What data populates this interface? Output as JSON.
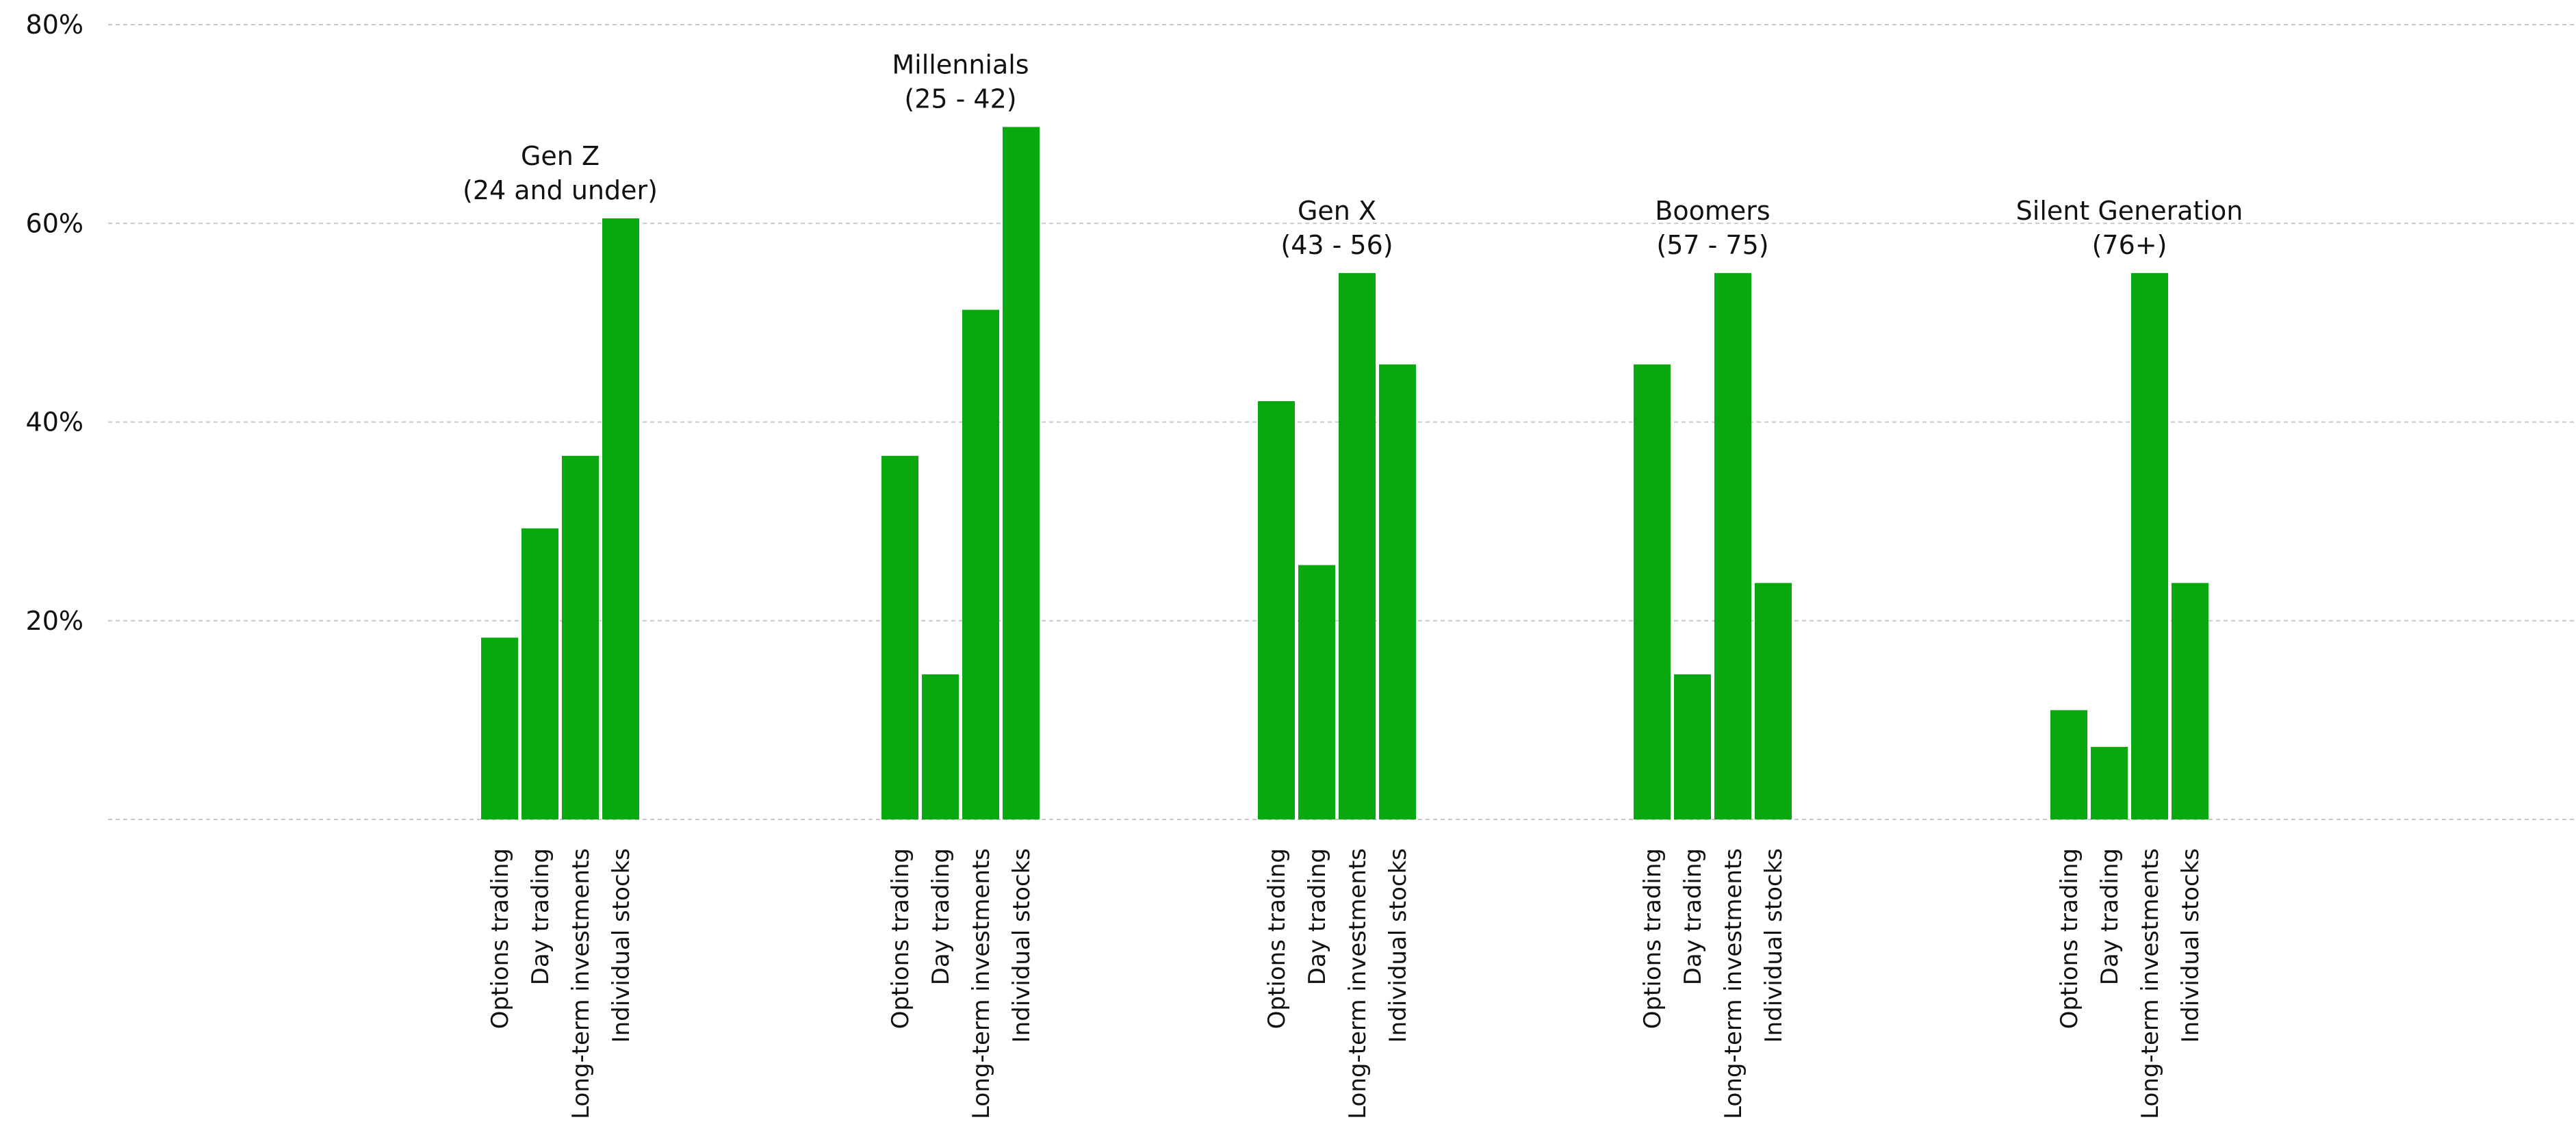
{
  "chart_data": {
    "type": "bar",
    "ylim": [
      0,
      80
    ],
    "yticks": [
      {
        "value": 20,
        "label": "20%"
      },
      {
        "value": 40,
        "label": "40%"
      },
      {
        "value": 60,
        "label": "60%"
      },
      {
        "value": 80,
        "label": "80%"
      }
    ],
    "grid": true,
    "categories": [
      "Options trading",
      "Day trading",
      "Long-term investments",
      "Individual stocks"
    ],
    "groups": [
      {
        "title_line1": "Gen Z",
        "title_line2": "(24 and under)",
        "values": [
          18.3,
          29.3,
          36.6,
          60.5
        ]
      },
      {
        "title_line1": "Millennials",
        "title_line2": "(25 - 42)",
        "values": [
          36.6,
          14.6,
          51.3,
          69.7
        ]
      },
      {
        "title_line1": "Gen X",
        "title_line2": "(43 - 56)",
        "values": [
          42.1,
          25.6,
          55.0,
          45.8
        ]
      },
      {
        "title_line1": "Boomers",
        "title_line2": "(57 - 75)",
        "values": [
          45.8,
          14.6,
          55.0,
          23.8
        ]
      },
      {
        "title_line1": "Silent Generation",
        "title_line2": "(76+)",
        "values": [
          11.0,
          7.3,
          55.0,
          23.8
        ]
      }
    ],
    "colors": {
      "bar": "#0aa80f",
      "grid": "#c8c8c8",
      "text": "#111111"
    }
  }
}
